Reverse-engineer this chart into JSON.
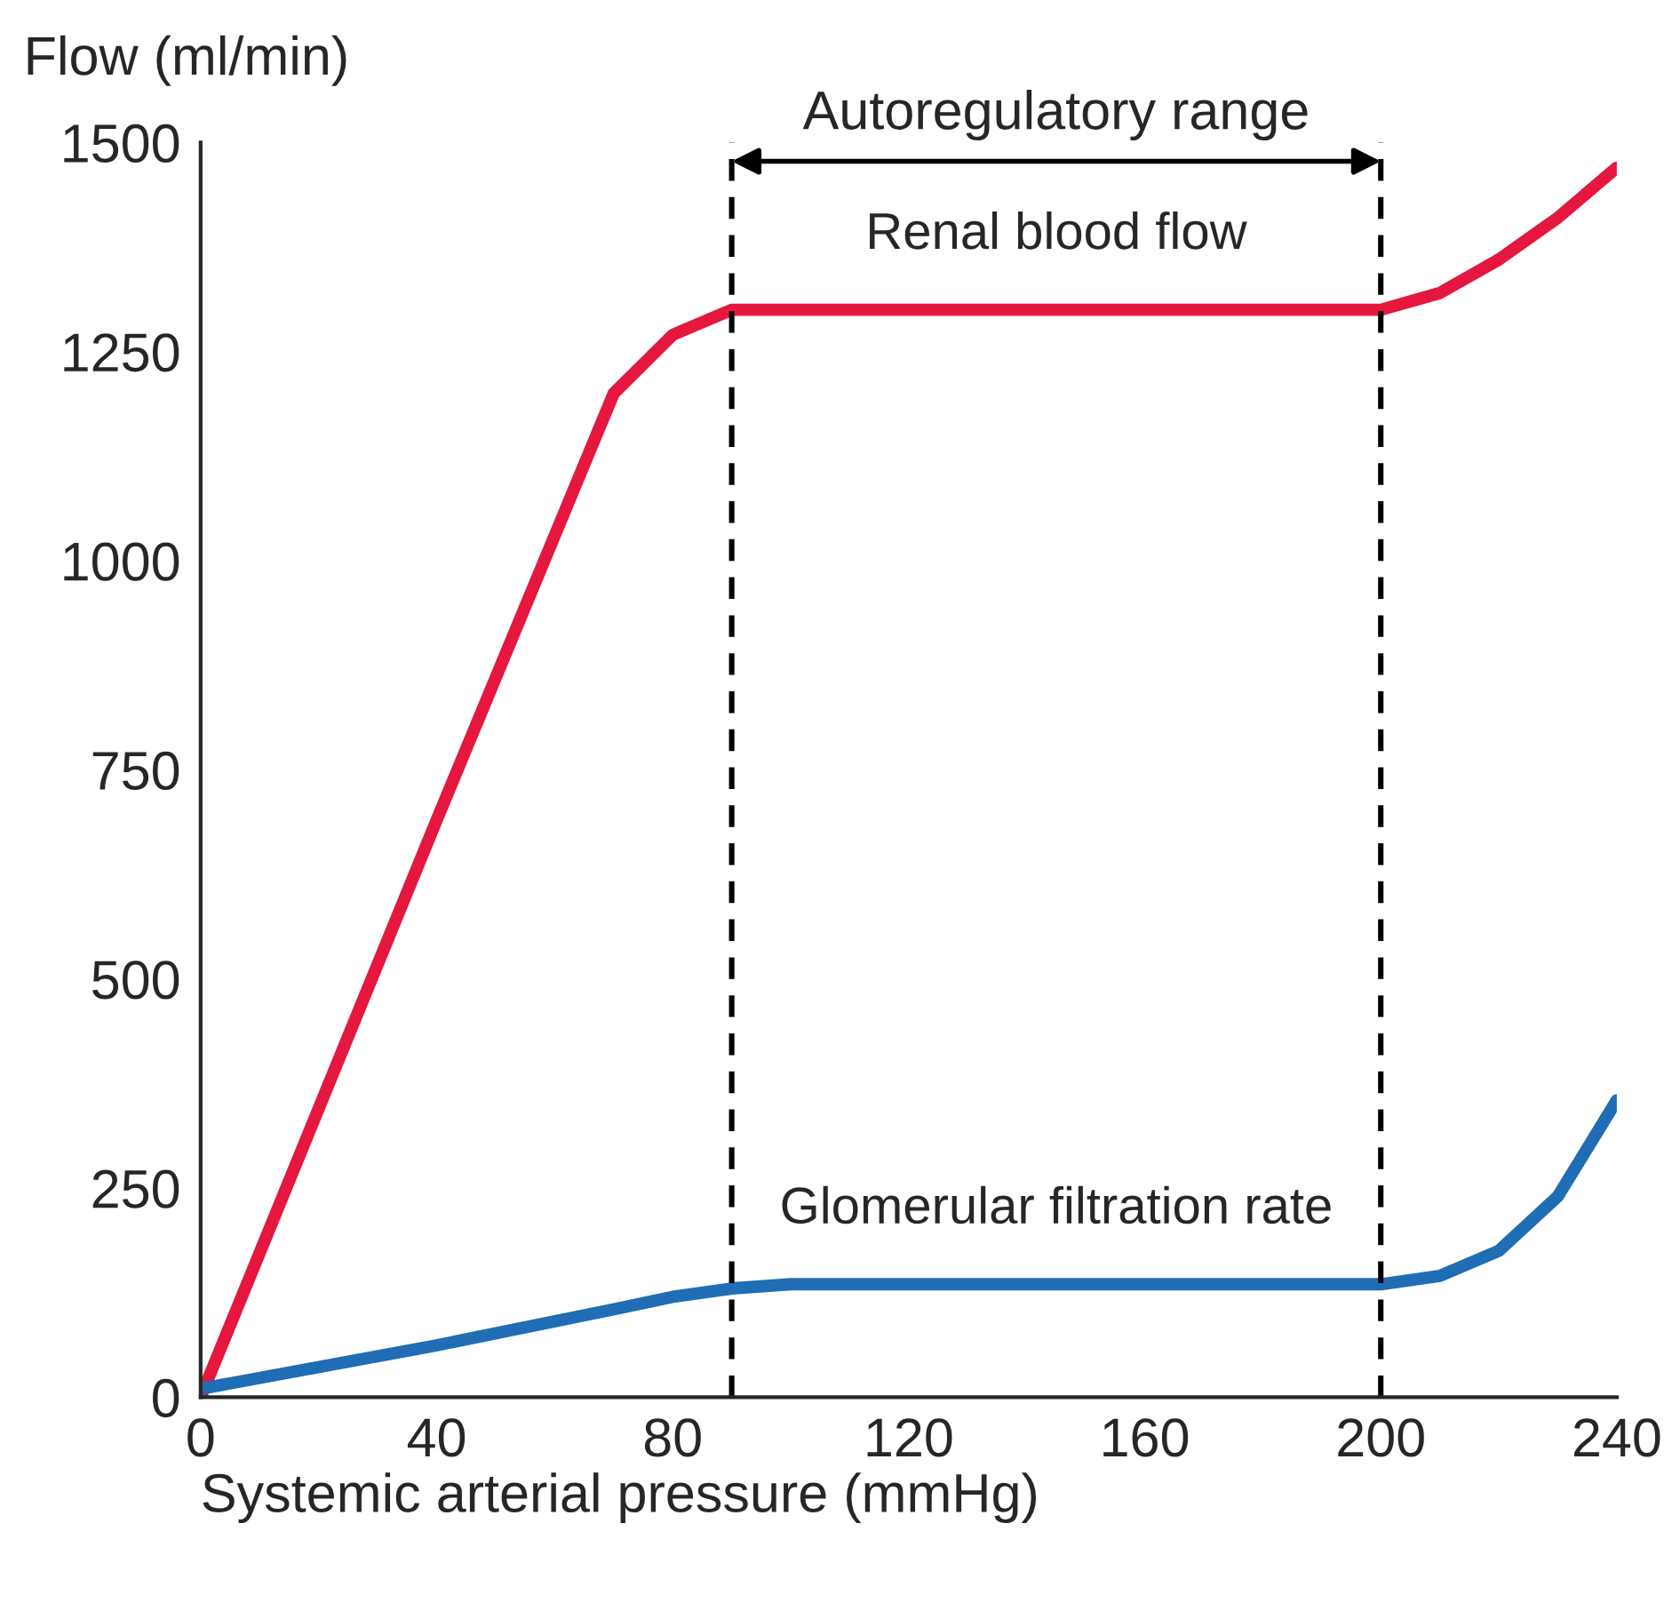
{
  "chart_data": {
    "type": "line",
    "xlabel": "Systemic arterial pressure (mmHg)",
    "ylabel": "Flow (ml/min)",
    "x": [
      0,
      40,
      70,
      80,
      90,
      100,
      120,
      160,
      200,
      210,
      220,
      230,
      240
    ],
    "series": [
      {
        "name": "Renal blood flow",
        "color": "#e5173f",
        "values": [
          0,
          690,
          1200,
          1270,
          1300,
          1300,
          1300,
          1300,
          1300,
          1320,
          1360,
          1410,
          1470
        ]
      },
      {
        "name": "Glomerular filtration rate",
        "color": "#1f6db5",
        "values": [
          10,
          62,
          105,
          120,
          130,
          135,
          135,
          135,
          135,
          145,
          175,
          240,
          355
        ]
      }
    ],
    "xlim": [
      0,
      240
    ],
    "xticks": [
      0,
      40,
      80,
      120,
      160,
      200,
      240
    ],
    "ylim": [
      0,
      1500
    ],
    "yticks": [
      0,
      250,
      500,
      750,
      1000,
      1250,
      1500
    ],
    "ref_lines": [
      {
        "axis": "x",
        "value": 90,
        "color": "#000000",
        "line_style": "dashed"
      },
      {
        "axis": "x",
        "value": 200,
        "color": "#000000",
        "line_style": "dashed"
      }
    ],
    "annotations": [
      "Autoregulatory range"
    ],
    "grid": false,
    "legend": false,
    "marker": "none",
    "line_style": "solid"
  }
}
